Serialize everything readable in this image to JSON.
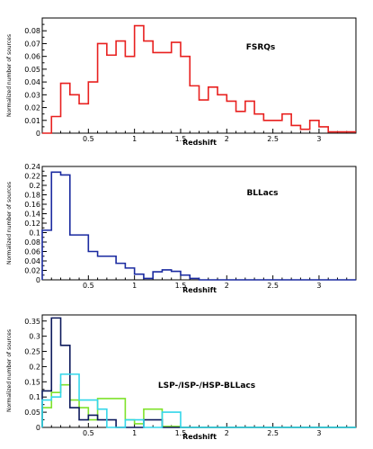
{
  "chart_data": [
    {
      "type": "step",
      "title": "FSRQs",
      "xlabel": "Redshift",
      "ylabel": "Normalized number of sources",
      "xlim": [
        0,
        3.4
      ],
      "ylim": [
        0,
        0.09
      ],
      "xticks": [
        "0.5",
        "1",
        "1.5",
        "2",
        "2.5",
        "3"
      ],
      "xtick_values": [
        0.5,
        1,
        1.5,
        2,
        2.5,
        3
      ],
      "yticks": [
        "0",
        "0.01",
        "0.02",
        "0.03",
        "0.04",
        "0.05",
        "0.06",
        "0.07",
        "0.08"
      ],
      "ytick_values": [
        0,
        0.01,
        0.02,
        0.03,
        0.04,
        0.05,
        0.06,
        0.07,
        0.08
      ],
      "bin_width": 0.1,
      "series": [
        {
          "color": "#e8201f",
          "values": [
            0,
            0.013,
            0.039,
            0.03,
            0.023,
            0.04,
            0.07,
            0.061,
            0.072,
            0.06,
            0.084,
            0.072,
            0.063,
            0.063,
            0.071,
            0.06,
            0.037,
            0.026,
            0.036,
            0.03,
            0.025,
            0.017,
            0.025,
            0.015,
            0.01,
            0.01,
            0.015,
            0.006,
            0.003,
            0.01,
            0.005,
            0.001,
            0.001,
            0.001
          ]
        }
      ]
    },
    {
      "type": "step",
      "title": "BLLacs",
      "xlabel": "Redshift",
      "ylabel": "Normalized number of sources",
      "xlim": [
        0,
        3.4
      ],
      "ylim": [
        0,
        0.24
      ],
      "xticks": [
        "0.5",
        "1",
        "1.5",
        "2",
        "2.5",
        "3"
      ],
      "xtick_values": [
        0.5,
        1,
        1.5,
        2,
        2.5,
        3
      ],
      "yticks": [
        "0",
        "0.02",
        "0.04",
        "0.06",
        "0.08",
        "0.1",
        "0.12",
        "0.14",
        "0.16",
        "0.18",
        "0.2",
        "0.22",
        "0.24"
      ],
      "ytick_values": [
        0,
        0.02,
        0.04,
        0.06,
        0.08,
        0.1,
        0.12,
        0.14,
        0.16,
        0.18,
        0.2,
        0.22,
        0.24
      ],
      "bin_width": 0.1,
      "series": [
        {
          "color": "#1a2aa0",
          "values": [
            0.105,
            0.228,
            0.222,
            0.095,
            0.095,
            0.06,
            0.05,
            0.05,
            0.035,
            0.025,
            0.012,
            0.003,
            0.017,
            0.021,
            0.018,
            0.01,
            0.003,
            0,
            0,
            0,
            0,
            0,
            0,
            0,
            0,
            0,
            0,
            0,
            0,
            0,
            0,
            0,
            0,
            0
          ]
        }
      ]
    },
    {
      "type": "step",
      "title": "LSP-/ISP-/HSP-BLLacs",
      "xlabel": "Redshift",
      "ylabel": "Normalized number of sources",
      "xlim": [
        0,
        3.4
      ],
      "ylim": [
        0,
        0.37
      ],
      "xticks": [
        "0.5",
        "1",
        "1.5",
        "2",
        "2.5",
        "3"
      ],
      "xtick_values": [
        0.5,
        1,
        1.5,
        2,
        2.5,
        3
      ],
      "yticks": [
        "0",
        "0.05",
        "0.1",
        "0.15",
        "0.2",
        "0.25",
        "0.3",
        "0.35"
      ],
      "ytick_values": [
        0,
        0.05,
        0.1,
        0.15,
        0.2,
        0.25,
        0.3,
        0.35
      ],
      "bin_width": 0.1,
      "series": [
        {
          "color": "#7fe22a",
          "values": [
            0.065,
            0.115,
            0.14,
            0.09,
            0.065,
            0.025,
            0.095,
            0.095,
            0.095,
            0.025,
            0.012,
            0.06,
            0.06,
            0.003,
            0.003,
            0,
            0,
            0,
            0,
            0,
            0,
            0,
            0,
            0,
            0,
            0,
            0,
            0,
            0,
            0,
            0,
            0,
            0,
            0
          ]
        },
        {
          "color": "#0d1a5c",
          "values": [
            0.12,
            0.36,
            0.27,
            0.065,
            0.025,
            0.04,
            0.025,
            0.025,
            0,
            0,
            0,
            0.025,
            0.025,
            0,
            0,
            0,
            0,
            0,
            0,
            0,
            0,
            0,
            0,
            0,
            0,
            0,
            0,
            0,
            0,
            0,
            0,
            0,
            0,
            0
          ]
        },
        {
          "color": "#33d6ea",
          "values": [
            0.09,
            0.1,
            0.175,
            0.175,
            0.09,
            0.09,
            0.06,
            0,
            0,
            0.025,
            0.025,
            0,
            0,
            0.05,
            0.05,
            0,
            0,
            0,
            0,
            0,
            0,
            0,
            0,
            0,
            0,
            0,
            0,
            0,
            0,
            0,
            0,
            0,
            0,
            0
          ]
        }
      ]
    }
  ]
}
